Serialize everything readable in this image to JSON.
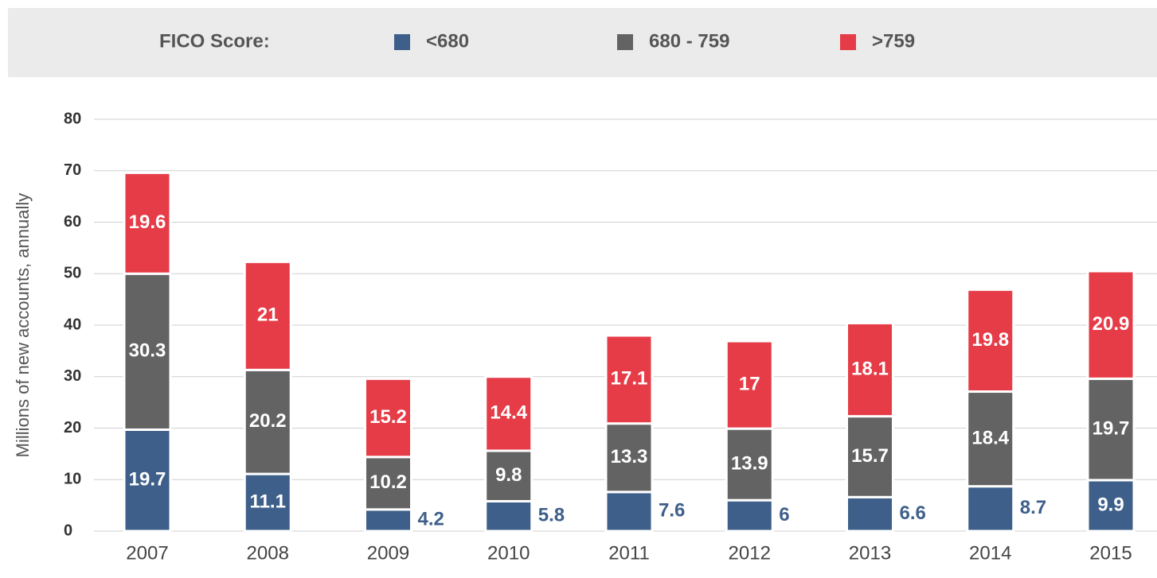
{
  "chart_data": {
    "type": "stacked_bar",
    "legend_title": "FICO Score:",
    "y_label": "Millions of new accounts, annually",
    "categories": [
      "2007",
      "2008",
      "2009",
      "2010",
      "2011",
      "2012",
      "2013",
      "2014",
      "2015"
    ],
    "series": [
      {
        "name": "<680",
        "color": "#3e5f8a",
        "values": [
          19.7,
          11.1,
          4.2,
          5.8,
          7.6,
          6,
          6.6,
          8.7,
          9.9
        ]
      },
      {
        "name": "680 - 759",
        "color": "#636363",
        "values": [
          30.3,
          20.2,
          10.2,
          9.8,
          13.3,
          13.9,
          15.7,
          18.4,
          19.7
        ]
      },
      {
        "name": ">759",
        "color": "#e63c47",
        "values": [
          19.6,
          21,
          15.2,
          14.4,
          17.1,
          17,
          18.1,
          19.8,
          20.9
        ]
      }
    ],
    "ylim": [
      0,
      80
    ],
    "yticks": [
      0,
      10,
      20,
      30,
      40,
      50,
      60,
      70,
      80
    ],
    "grid": true
  }
}
